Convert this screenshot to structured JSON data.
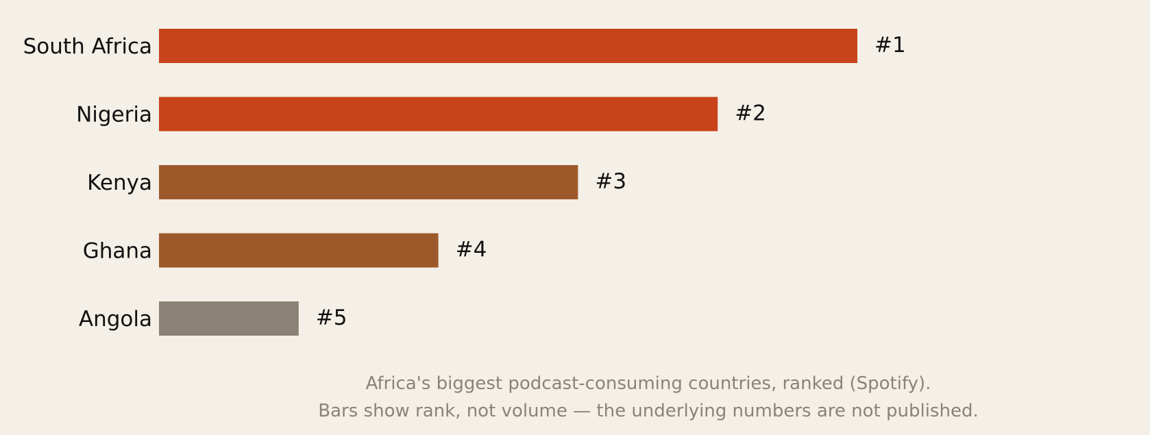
{
  "chart_data": {
    "type": "bar",
    "orientation": "horizontal",
    "categories": [
      "South Africa",
      "Nigeria",
      "Kenya",
      "Ghana",
      "Angola"
    ],
    "values": [
      5,
      4,
      3,
      2,
      1
    ],
    "rank_labels": [
      "#1",
      "#2",
      "#3",
      "#4",
      "#5"
    ],
    "bar_colors": [
      "#c8431a",
      "#c8431a",
      "#9e592b",
      "#9e592b",
      "#8a8274"
    ],
    "xlim": [
      0,
      5
    ],
    "grid": false,
    "legend": "none",
    "caption": [
      "Africa's biggest podcast-consuming countries, ranked (Spotify).",
      "Bars show rank, not volume — the underlying numbers are not published."
    ]
  }
}
